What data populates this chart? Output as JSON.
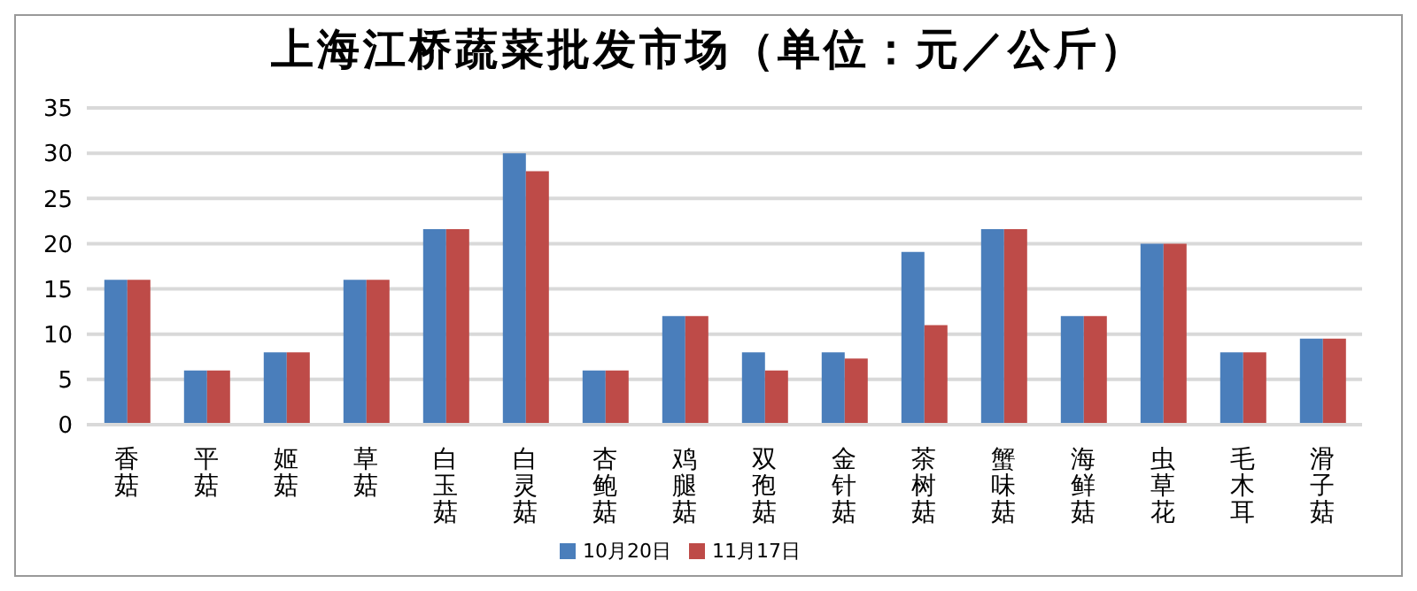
{
  "chart_data": {
    "type": "bar",
    "title": "上海江桥蔬菜批发市场（单位：元／公斤）",
    "categories": [
      "香菇",
      "平菇",
      "姬菇",
      "草菇",
      "白玉菇",
      "白灵菇",
      "杏鲍菇",
      "鸡腿菇",
      "双孢菇",
      "金针菇",
      "茶树菇",
      "蟹味菇",
      "海鲜菇",
      "虫草花",
      "毛木耳",
      "滑子菇"
    ],
    "series": [
      {
        "name": "10月20日",
        "color": "#4a7ebb",
        "values": [
          16,
          6,
          8,
          16,
          21.6,
          30,
          6,
          12,
          8,
          8,
          19.1,
          21.6,
          12,
          20,
          8,
          9.5
        ]
      },
      {
        "name": "11月17日",
        "color": "#be4b48",
        "values": [
          16,
          6,
          8,
          16,
          21.6,
          28,
          6,
          12,
          6,
          7.3,
          11,
          21.6,
          12,
          20,
          8,
          9.5
        ]
      }
    ],
    "ylim": [
      0,
      35
    ],
    "yticks": [
      0,
      5,
      10,
      15,
      20,
      25,
      30,
      35
    ],
    "grid": "y",
    "legend": "bottom"
  }
}
